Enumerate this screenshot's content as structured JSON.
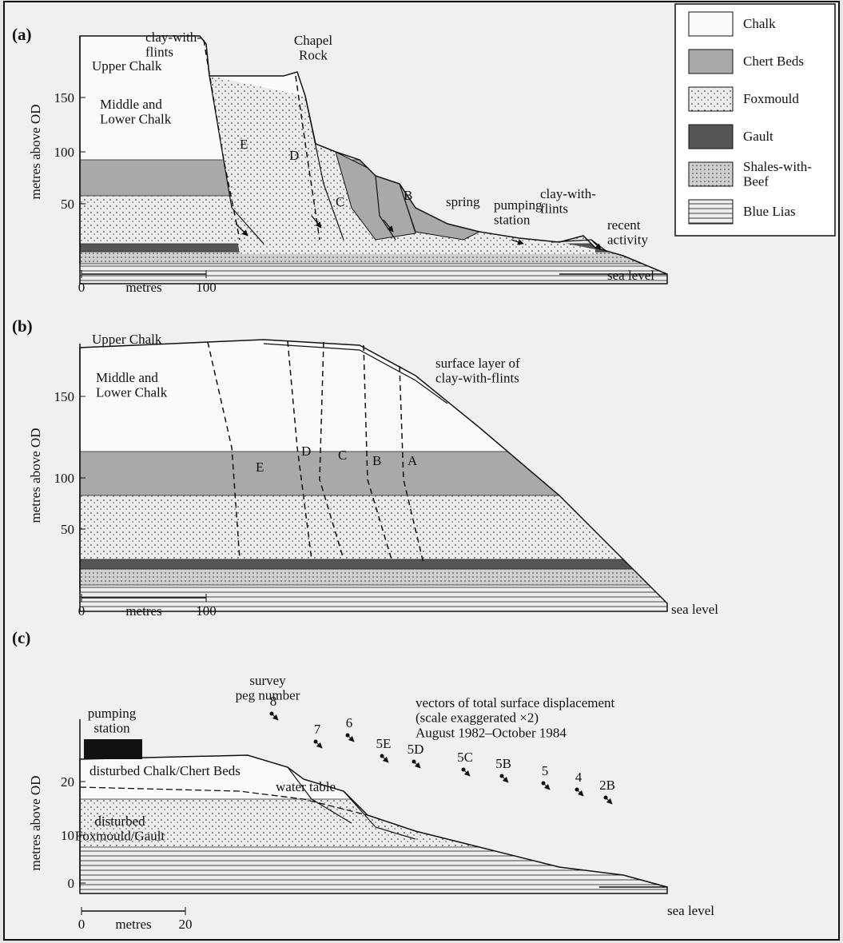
{
  "legend": {
    "items": [
      [
        "Chalk"
      ],
      [
        "Chert Beds"
      ],
      [
        "Foxmould"
      ],
      [
        "Gault"
      ],
      [
        "Shales-with-",
        "Beef"
      ],
      [
        "Blue Lias"
      ]
    ]
  },
  "panels": [
    {
      "tag": "(a)",
      "y_axis_label": "metres above OD",
      "yticks": [
        150,
        100,
        50
      ],
      "scale": [
        0,
        "metres",
        100
      ],
      "labels": [
        [
          "clay-with-",
          "flints"
        ],
        [
          "Chapel",
          "Rock"
        ],
        [
          "Upper Chalk"
        ],
        [
          "Middle and",
          "Lower Chalk"
        ],
        [
          "E"
        ],
        [
          "D"
        ],
        [
          "C"
        ],
        [
          "B"
        ],
        [
          "spring"
        ],
        [
          "pumping",
          "station"
        ],
        [
          "clay-with-",
          "flints"
        ],
        [
          "recent",
          "activity"
        ],
        [
          "sea level"
        ]
      ]
    },
    {
      "tag": "(b)",
      "y_axis_label": "metres above OD",
      "yticks": [
        150,
        100,
        50
      ],
      "scale": [
        0,
        "metres",
        100
      ],
      "labels": [
        [
          "Upper Chalk"
        ],
        [
          "Middle and",
          "Lower Chalk"
        ],
        [
          "E"
        ],
        [
          "D"
        ],
        [
          "C"
        ],
        [
          "B"
        ],
        [
          "A"
        ],
        [
          "surface layer of",
          "clay-with-flints"
        ],
        [
          "sea level"
        ]
      ]
    },
    {
      "tag": "(c)",
      "y_axis_label": "metres above OD",
      "yticks": [
        20,
        10,
        0
      ],
      "scale": [
        0,
        "metres",
        20
      ],
      "labels": [
        [
          "survey",
          "peg number"
        ],
        [
          "vectors of total surface displacement",
          "(scale exaggerated ×2)",
          "August 1982–October 1984"
        ],
        [
          "pumping",
          "station"
        ],
        [
          "disturbed Chalk/Chert Beds"
        ],
        [
          "water table"
        ],
        [
          "disturbed",
          "Foxmould/Gault"
        ],
        [
          "sea level"
        ]
      ],
      "pegs": [
        "8",
        "7",
        "6",
        "5E",
        "5D",
        "5C",
        "5B",
        "5",
        "4",
        "2B"
      ]
    }
  ]
}
